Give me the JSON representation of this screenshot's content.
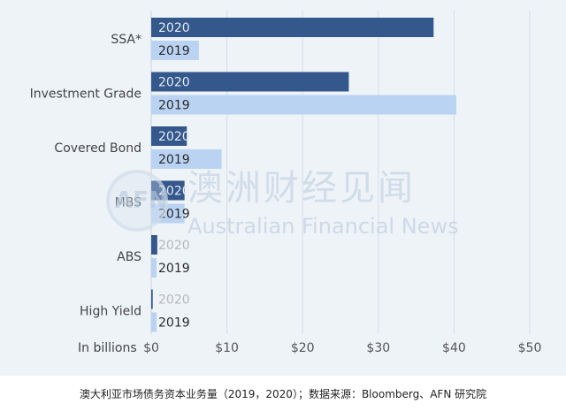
{
  "chart_data": {
    "type": "bar",
    "orientation": "horizontal",
    "categories": [
      "SSA*",
      "Investment Grade",
      "Covered Bond",
      "MBS",
      "ABS",
      "High Yield"
    ],
    "series": [
      {
        "name": "2020",
        "values": [
          37.3,
          26.1,
          4.7,
          4.4,
          0.8,
          0.2
        ],
        "color": "#34578c"
      },
      {
        "name": "2019",
        "values": [
          6.3,
          40.3,
          9.3,
          4.4,
          0.7,
          0.7
        ],
        "color": "#bad3f2"
      }
    ],
    "xlabel": "In billions",
    "xlim": [
      0,
      50
    ],
    "xticks": [
      "$0",
      "$10",
      "$20",
      "$30",
      "$40",
      "$50"
    ],
    "grid": true
  },
  "watermark": {
    "logo_text": "AFN",
    "chinese": "澳洲财经见闻",
    "english": "Australian Financial News"
  },
  "caption": "澳大利亚市场债务资本业务量（2019，2020）；数据来源：Bloomberg、AFN 研究院"
}
